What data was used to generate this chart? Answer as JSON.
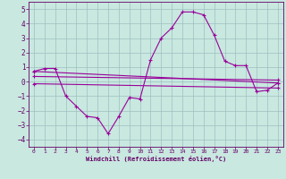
{
  "xlabel": "Windchill (Refroidissement éolien,°C)",
  "background_color": "#c8e8e0",
  "grid_color": "#9fbfbf",
  "line_color": "#990099",
  "xlim": [
    -0.5,
    23.5
  ],
  "ylim": [
    -4.5,
    5.5
  ],
  "yticks": [
    -4,
    -3,
    -2,
    -1,
    0,
    1,
    2,
    3,
    4,
    5
  ],
  "xticks": [
    0,
    1,
    2,
    3,
    4,
    5,
    6,
    7,
    8,
    9,
    10,
    11,
    12,
    13,
    14,
    15,
    16,
    17,
    18,
    19,
    20,
    21,
    22,
    23
  ],
  "series1_x": [
    0,
    1,
    2,
    3,
    4,
    5,
    6,
    7,
    8,
    9,
    10,
    11,
    12,
    13,
    14,
    15,
    16,
    17,
    18,
    19,
    20,
    21,
    22,
    23
  ],
  "series1_y": [
    0.7,
    0.9,
    0.9,
    -1.0,
    -1.7,
    -2.4,
    -2.5,
    -3.6,
    -2.4,
    -1.1,
    -1.2,
    1.5,
    3.0,
    3.7,
    4.8,
    4.8,
    4.6,
    3.2,
    1.4,
    1.1,
    1.1,
    -0.7,
    -0.6,
    -0.1
  ],
  "series2_x": [
    0,
    23
  ],
  "series2_y": [
    0.7,
    -0.1
  ],
  "series3_x": [
    0,
    23
  ],
  "series3_y": [
    0.35,
    0.1
  ],
  "series4_x": [
    0,
    23
  ],
  "series4_y": [
    -0.15,
    -0.45
  ]
}
